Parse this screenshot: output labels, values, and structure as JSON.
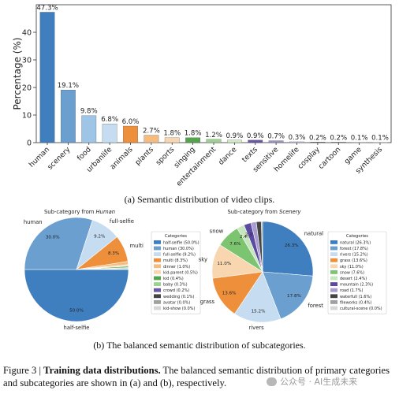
{
  "captions": {
    "a": "(a) Semantic distribution of video clips.",
    "b": "(b) The balanced semantic distribution of subcategories.",
    "figure_label": "Figure 3 | ",
    "figure_title": "Training data distributions.",
    "figure_text": " The balanced semantic distribution of primary categories and subcategories are shown in (a) and (b), respectively."
  },
  "watermark": {
    "text": "公众号 · AI生成未来"
  },
  "chart_data": [
    {
      "type": "bar",
      "ylabel": "Percentage (%)",
      "xlabel": "",
      "ylim": [
        0,
        50
      ],
      "yticks": [
        0,
        10,
        20,
        30,
        40
      ],
      "grid": false,
      "categories": [
        "human",
        "scenery",
        "food",
        "urbanlife",
        "animals",
        "plants",
        "sports",
        "singing",
        "entertainment",
        "dance",
        "texts",
        "sensitive",
        "homelife",
        "cosplay",
        "cartoon",
        "game",
        "synthesis"
      ],
      "values": [
        47.3,
        19.1,
        9.8,
        6.8,
        6.0,
        2.7,
        1.8,
        1.8,
        1.2,
        0.9,
        0.9,
        0.7,
        0.3,
        0.2,
        0.2,
        0.1,
        0.1
      ],
      "value_labels": [
        "47.3%",
        "19.1%",
        "9.8%",
        "6.8%",
        "6.0%",
        "2.7%",
        "1.8%",
        "1.8%",
        "1.2%",
        "0.9%",
        "0.9%",
        "0.7%",
        "0.3%",
        "0.2%",
        "0.2%",
        "0.1%",
        "0.1%"
      ],
      "colors": [
        "#3f7fbf",
        "#6a9fd0",
        "#9ec4e6",
        "#c6dcf0",
        "#ee8f3c",
        "#f5bb7f",
        "#f8d7b0",
        "#51a64a",
        "#9bd290",
        "#d3ebcb",
        "#6b57a8",
        "#9e90c8",
        "#c8c0e0",
        "#555555",
        "#888888",
        "#b0b0b0",
        "#d8d8d8"
      ]
    },
    {
      "type": "pie",
      "title_prefix": "Sub-category from ",
      "title_em": "Human",
      "legend_title": "Categories",
      "legend_position": "right",
      "slices": [
        {
          "name": "half-selfie",
          "value": 50.0,
          "color": "#3f7fbf",
          "label": "half-selfie",
          "pct": "50.0%",
          "legend": "half-selfie (50.0%)"
        },
        {
          "name": "human",
          "value": 30.0,
          "color": "#6a9fd0",
          "label": "human",
          "pct": "30.0%",
          "legend": "human (30.0%)"
        },
        {
          "name": "full-selfie",
          "value": 9.2,
          "color": "#c6dcf0",
          "label": "full-selfie",
          "pct": "9.2%",
          "legend": "full-selfie (9.2%)"
        },
        {
          "name": "multi",
          "value": 8.3,
          "color": "#ee8f3c",
          "label": "multi",
          "pct": "8.3%",
          "legend": "multi (8.3%)"
        },
        {
          "name": "dinner",
          "value": 1.0,
          "color": "#f5bb7f",
          "label": "",
          "pct": "",
          "legend": "dinner (1.0%)"
        },
        {
          "name": "kid-parent",
          "value": 0.5,
          "color": "#f8d7b0",
          "label": "",
          "pct": "",
          "legend": "kid-parent (0.5%)"
        },
        {
          "name": "kid",
          "value": 0.4,
          "color": "#51a64a",
          "label": "",
          "pct": "",
          "legend": "kid (0.4%)"
        },
        {
          "name": "baby",
          "value": 0.3,
          "color": "#9bd290",
          "label": "",
          "pct": "",
          "legend": "baby (0.3%)"
        },
        {
          "name": "crowd",
          "value": 0.2,
          "color": "#6b57a8",
          "label": "",
          "pct": "",
          "legend": "crowd (0.2%)"
        },
        {
          "name": "wedding",
          "value": 0.1,
          "color": "#444444",
          "label": "",
          "pct": "",
          "legend": "wedding (0.1%)"
        },
        {
          "name": "avatar",
          "value": 0.0,
          "color": "#a0a0a0",
          "label": "",
          "pct": "",
          "legend": "avatar (0.0%)"
        },
        {
          "name": "kid-show",
          "value": 0.0,
          "color": "#d6d6d6",
          "label": "",
          "pct": "",
          "legend": "kid-show (0.0%)"
        }
      ]
    },
    {
      "type": "pie",
      "title_prefix": "Sub-category from ",
      "title_em": "Scenery",
      "legend_title": "Categories",
      "legend_position": "right",
      "slices": [
        {
          "name": "natural",
          "value": 26.3,
          "color": "#3f7fbf",
          "label": "natural",
          "pct": "26.3%",
          "legend": "natural (26.3%)"
        },
        {
          "name": "forest",
          "value": 17.8,
          "color": "#6a9fd0",
          "label": "forest",
          "pct": "17.8%",
          "legend": "forest (17.8%)"
        },
        {
          "name": "rivers",
          "value": 15.2,
          "color": "#c6dcf0",
          "label": "rivers",
          "pct": "15.2%",
          "legend": "rivers (15.2%)"
        },
        {
          "name": "grass",
          "value": 13.6,
          "color": "#ee8f3c",
          "label": "grass",
          "pct": "13.6%",
          "legend": "grass (13.6%)"
        },
        {
          "name": "sky",
          "value": 11.0,
          "color": "#f8d7b0",
          "label": "sky",
          "pct": "11.0%",
          "legend": "sky (11.0%)"
        },
        {
          "name": "snow",
          "value": 7.6,
          "color": "#7cc46f",
          "label": "snow",
          "pct": "7.6%",
          "legend": "snow (7.6%)"
        },
        {
          "name": "desert",
          "value": 2.4,
          "color": "#c6e6be",
          "label": "",
          "pct": "2.4%",
          "legend": "desert (2.4%)"
        },
        {
          "name": "mountain",
          "value": 2.3,
          "color": "#5a4aa0",
          "label": "",
          "pct": "2.3%",
          "legend": "mountain (2.3%)"
        },
        {
          "name": "road",
          "value": 1.7,
          "color": "#a89cd0",
          "label": "",
          "pct": "",
          "legend": "road (1.7%)"
        },
        {
          "name": "waterfull",
          "value": 1.6,
          "color": "#444444",
          "label": "",
          "pct": "",
          "legend": "waterfull (1.6%)"
        },
        {
          "name": "fileworks",
          "value": 0.4,
          "color": "#a0a0a0",
          "label": "",
          "pct": "",
          "legend": "fileworks (0.4%)"
        },
        {
          "name": "cultural-scene",
          "value": 0.0,
          "color": "#d6d6d6",
          "label": "",
          "pct": "",
          "legend": "cultural-scene (0.0%)"
        }
      ]
    }
  ]
}
